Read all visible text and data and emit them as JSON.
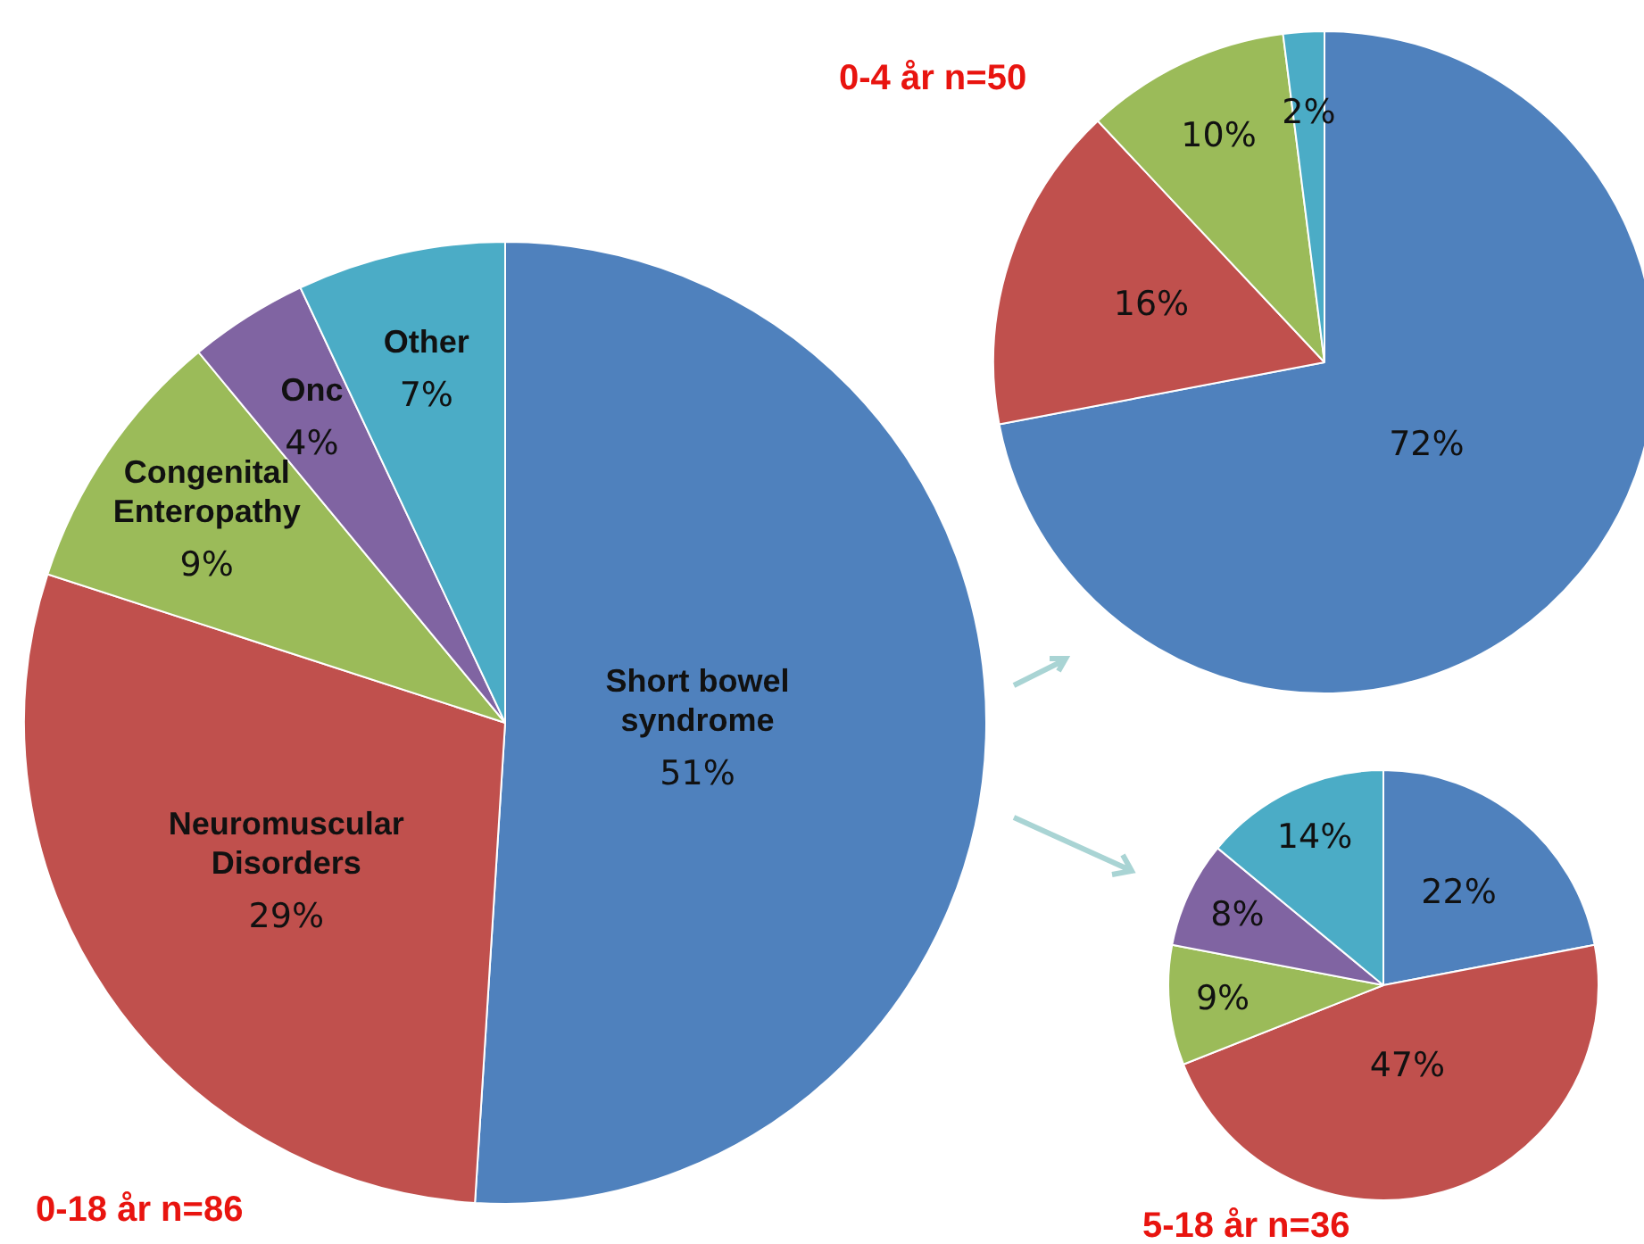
{
  "chart_data": [
    {
      "type": "pie",
      "title": "0-18 år n=86",
      "categories": [
        "Short bowel syndrome",
        "Neuromuscular Disorders",
        "Congenital Enteropathy",
        "Onc",
        "Other"
      ],
      "values": [
        51,
        29,
        9,
        4,
        7
      ],
      "value_labels": [
        "51%",
        "29%",
        "9%",
        "4%",
        "7%"
      ],
      "colors": [
        "#4f81bd",
        "#c0504d",
        "#9bbb59",
        "#8064a2",
        "#4bacc6"
      ],
      "legend": false
    },
    {
      "type": "pie",
      "title": "0-4 år n=50",
      "categories": [
        null,
        null,
        null,
        null
      ],
      "values": [
        72,
        16,
        10,
        2
      ],
      "value_labels": [
        "72%",
        "16%",
        "10%",
        "2%"
      ],
      "colors": [
        "#4f81bd",
        "#c0504d",
        "#9bbb59",
        "#4bacc6"
      ],
      "legend": false
    },
    {
      "type": "pie",
      "title": "5-18 år n=36",
      "categories": [
        null,
        null,
        null,
        null,
        null
      ],
      "values": [
        22,
        47,
        9,
        8,
        14
      ],
      "value_labels": [
        "22%",
        "47%",
        "9%",
        "8%",
        "14%"
      ],
      "colors": [
        "#4f81bd",
        "#c0504d",
        "#9bbb59",
        "#8064a2",
        "#4bacc6"
      ],
      "legend": false
    }
  ]
}
